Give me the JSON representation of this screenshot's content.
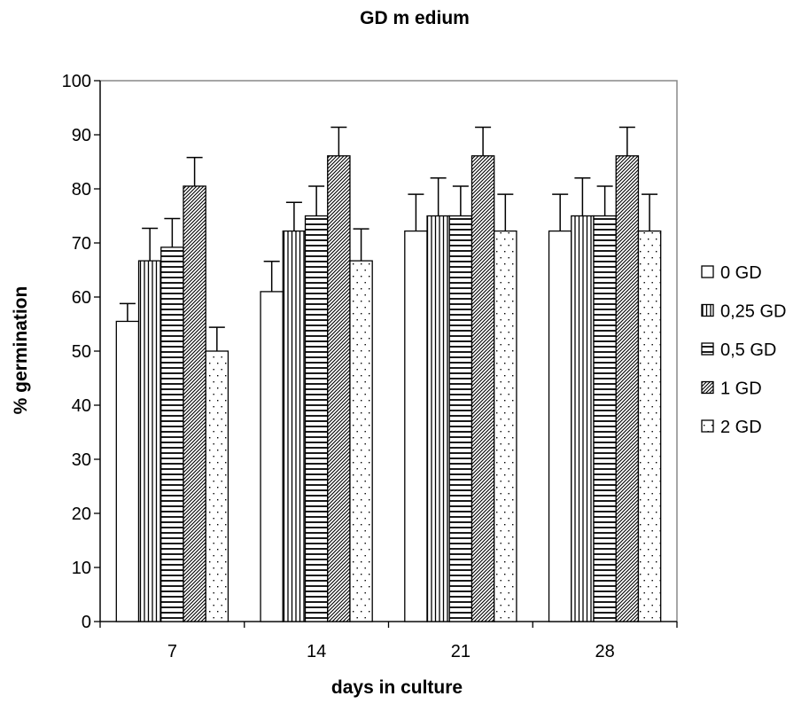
{
  "chart_data": {
    "type": "bar",
    "title": "GD m edium",
    "xlabel": "days in culture",
    "ylabel": "% germination",
    "ylim": [
      0,
      100
    ],
    "yticks": [
      0,
      10,
      20,
      30,
      40,
      50,
      60,
      70,
      80,
      90,
      100
    ],
    "categories": [
      "7",
      "14",
      "21",
      "28"
    ],
    "grid": false,
    "legend_position": "right",
    "error_bars": true,
    "series": [
      {
        "name": "0 GD",
        "pattern": "blank",
        "values": [
          55.5,
          61,
          72.2,
          72.2
        ],
        "errors": [
          3.3,
          5.6,
          6.8,
          6.8
        ]
      },
      {
        "name": "0,25 GD",
        "pattern": "vertical-lines",
        "values": [
          66.7,
          72.2,
          75,
          75
        ],
        "errors": [
          6,
          5.3,
          7,
          7
        ]
      },
      {
        "name": "0,5 GD",
        "pattern": "horizontal-lines",
        "values": [
          69.2,
          75,
          75,
          75
        ],
        "errors": [
          5.3,
          5.5,
          5.5,
          5.5
        ]
      },
      {
        "name": "1 GD",
        "pattern": "diagonal-lines",
        "values": [
          80.5,
          86.1,
          86.1,
          86.1
        ],
        "errors": [
          5.3,
          5.3,
          5.3,
          5.3
        ]
      },
      {
        "name": "2 GD",
        "pattern": "dots",
        "values": [
          50,
          66.7,
          72.2,
          72.2
        ],
        "errors": [
          4.4,
          5.9,
          6.8,
          6.8
        ]
      }
    ],
    "colors": {
      "stroke": "#000000",
      "background": "#ffffff"
    }
  }
}
